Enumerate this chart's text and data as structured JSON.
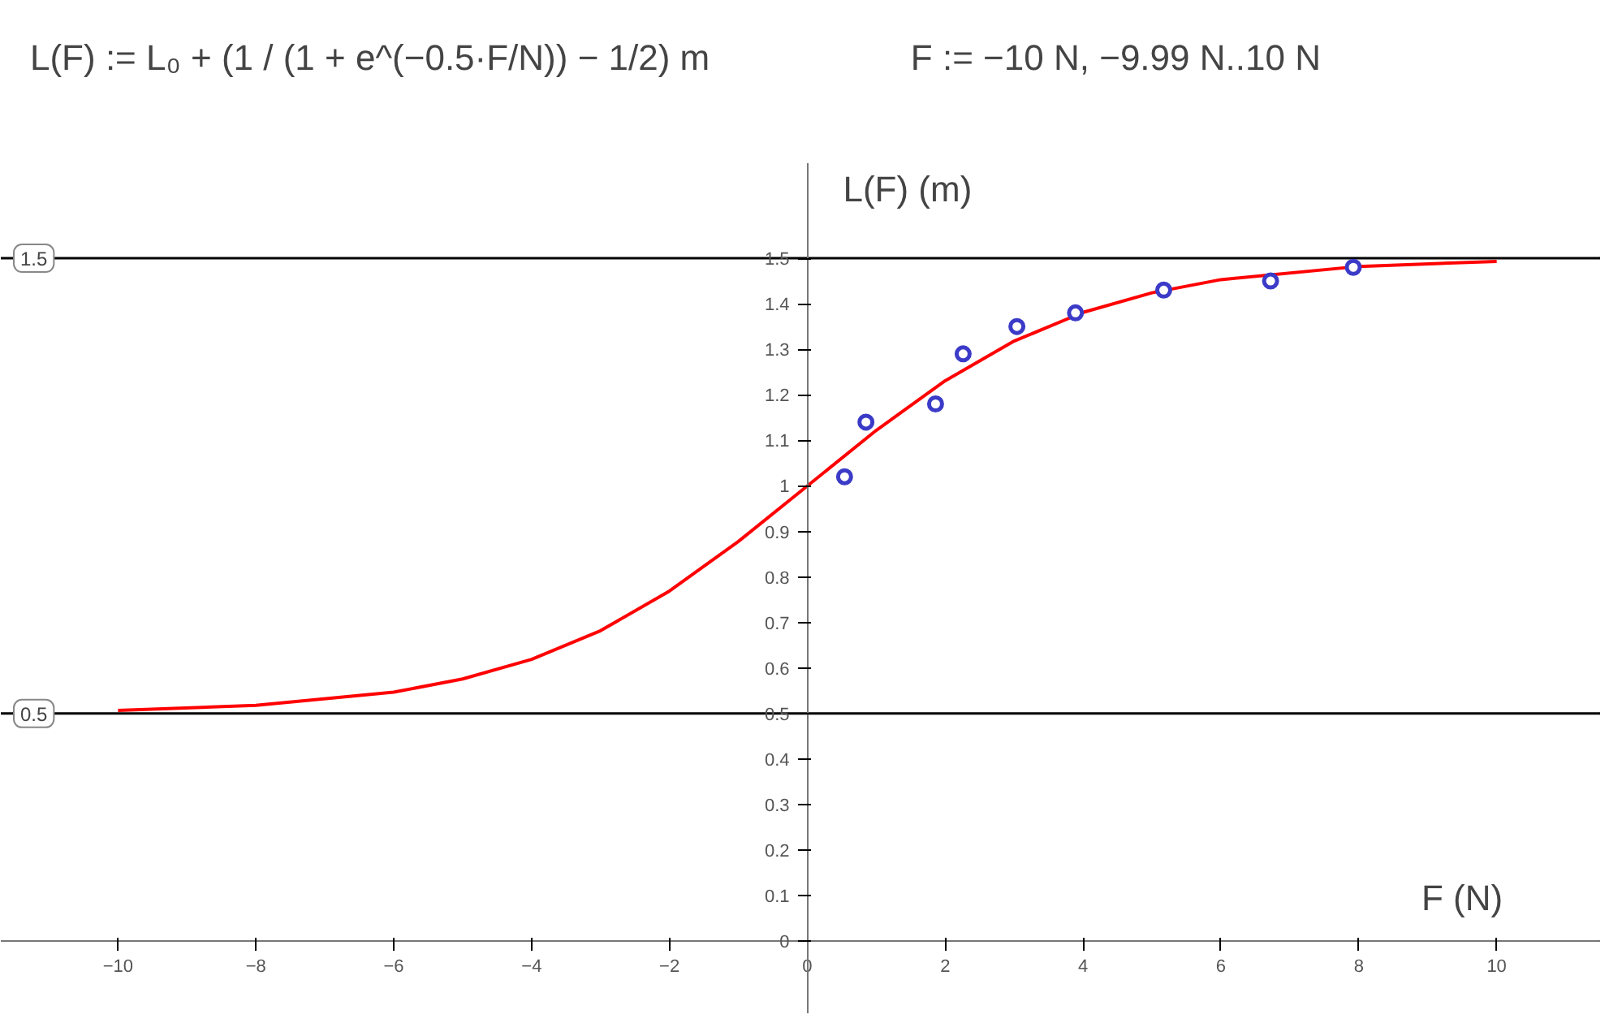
{
  "chart_data": {
    "type": "line",
    "annotations": [
      "L(F) := L₀ + (1 / (1 + e^(−0.5·F/N)) − 1/2) m",
      "F := −10 N, −9.99 N..10 N"
    ],
    "xlabel": "F  (N)",
    "ylabel": "L(F)  (m)",
    "series": [
      {
        "color": "#ff0000",
        "x": [
          -10,
          -8,
          -6,
          -5,
          -4,
          -3,
          -2,
          -1,
          0,
          1,
          2,
          3,
          4,
          5,
          6,
          8,
          10
        ],
        "values": [
          0.507,
          0.518,
          0.547,
          0.576,
          0.619,
          0.682,
          0.769,
          0.878,
          1.0,
          1.122,
          1.231,
          1.318,
          1.381,
          1.424,
          1.453,
          1.482,
          1.493
        ]
      },
      {
        "type": "scatter",
        "color": "#3b3bc8",
        "marker": "circle",
        "x": [
          0.54,
          0.85,
          1.86,
          2.26,
          3.04,
          3.89,
          5.17,
          6.72,
          7.92
        ],
        "values": [
          1.02,
          1.14,
          1.18,
          1.29,
          1.35,
          1.38,
          1.43,
          1.45,
          1.48
        ]
      }
    ],
    "ref_lines": [
      {
        "axis": "y",
        "value": 1.5,
        "label": "1.5",
        "color": "#000000"
      },
      {
        "axis": "y",
        "value": 0.5,
        "label": "0.5",
        "color": "#000000"
      }
    ],
    "xlim": [
      -11.7,
      11.5
    ],
    "ylim": [
      -0.16,
      1.71
    ],
    "xticks": [
      {
        "value": -10,
        "label": "−10"
      },
      {
        "value": -8,
        "label": "−8"
      },
      {
        "value": -6,
        "label": "−6"
      },
      {
        "value": -4,
        "label": "−4"
      },
      {
        "value": -2,
        "label": "−2"
      },
      0,
      2,
      4,
      6,
      8,
      10
    ],
    "yticks": [
      0,
      0.1,
      0.2,
      0.3,
      0.4,
      0.5,
      0.6,
      0.7,
      0.8,
      0.9,
      1,
      1.1,
      1.2,
      1.3,
      1.4,
      1.5
    ],
    "grid": false
  }
}
